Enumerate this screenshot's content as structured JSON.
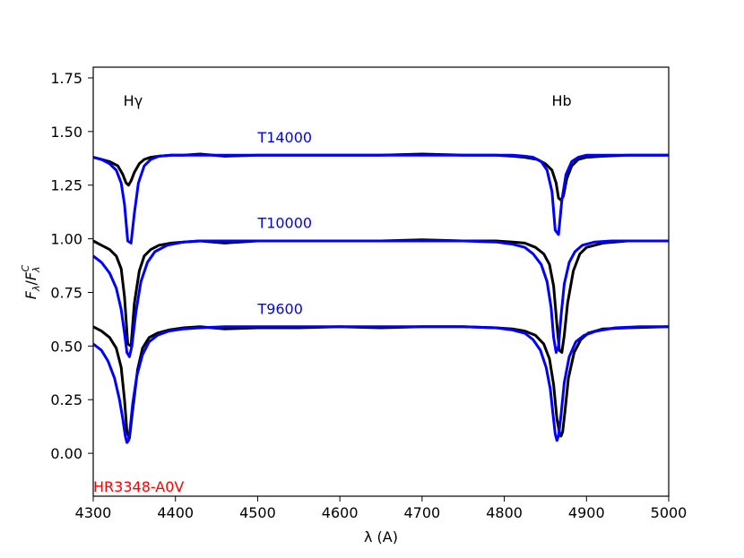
{
  "chart_data": {
    "type": "line",
    "title": "",
    "xlabel": "λ (A)",
    "ylabel": "Fλ/FλC",
    "xlim": [
      4300,
      5000
    ],
    "ylim": [
      -0.2,
      1.8
    ],
    "xticks": [
      4300,
      4400,
      4500,
      4600,
      4700,
      4800,
      4900,
      5000
    ],
    "xtick_labels": [
      "4300",
      "4400",
      "4500",
      "4600",
      "4700",
      "4800",
      "4900",
      "5000"
    ],
    "yticks": [
      0.0,
      0.25,
      0.5,
      0.75,
      1.0,
      1.25,
      1.5,
      1.75
    ],
    "ytick_labels": [
      "0.00",
      "0.25",
      "0.50",
      "0.75",
      "1.00",
      "1.25",
      "1.50",
      "1.75"
    ],
    "grid": false,
    "line_features": [
      {
        "label": "Hγ",
        "x": 4340,
        "y": 1.62
      },
      {
        "label": "Hb",
        "x": 4861,
        "y": 1.62
      }
    ],
    "annotations": [
      {
        "text": "T14000",
        "x": 4500,
        "y": 1.45,
        "color": "#0000ff"
      },
      {
        "text": "T10000",
        "x": 4500,
        "y": 1.05,
        "color": "#0000ff"
      },
      {
        "text": "T9600",
        "x": 4500,
        "y": 0.65,
        "color": "#0000ff"
      },
      {
        "text": "HR3348-A0V",
        "x": 4300,
        "y": -0.18,
        "color": "#ff0000"
      }
    ],
    "colors": {
      "observed": "#000000",
      "model": "#0000ff"
    },
    "series": [
      {
        "role": "observed",
        "offset": 0.4,
        "color": "#000000",
        "x": [
          4300,
          4310,
          4320,
          4330,
          4336,
          4340,
          4343,
          4346,
          4350,
          4356,
          4362,
          4370,
          4380,
          4395,
          4410,
          4430,
          4460,
          4500,
          4550,
          4600,
          4650,
          4700,
          4750,
          4790,
          4810,
          4825,
          4840,
          4850,
          4858,
          4863,
          4866,
          4869,
          4872,
          4876,
          4882,
          4890,
          4900,
          4920,
          4950,
          5000
        ],
        "y": [
          0.98,
          0.97,
          0.96,
          0.94,
          0.9,
          0.86,
          0.85,
          0.87,
          0.91,
          0.95,
          0.97,
          0.98,
          0.985,
          0.99,
          0.99,
          0.995,
          0.985,
          0.99,
          0.99,
          0.99,
          0.99,
          0.995,
          0.99,
          0.99,
          0.985,
          0.98,
          0.97,
          0.95,
          0.92,
          0.86,
          0.79,
          0.78,
          0.8,
          0.88,
          0.94,
          0.97,
          0.98,
          0.985,
          0.99,
          0.99
        ]
      },
      {
        "role": "model",
        "name": "T14000",
        "offset": 0.4,
        "color": "#0000ff",
        "x": [
          4300,
          4310,
          4320,
          4328,
          4334,
          4338,
          4342,
          4346,
          4350,
          4355,
          4362,
          4370,
          4380,
          4395,
          4410,
          4430,
          4460,
          4500,
          4550,
          4600,
          4650,
          4700,
          4750,
          4790,
          4810,
          4825,
          4835,
          4845,
          4852,
          4858,
          4862,
          4866,
          4870,
          4875,
          4882,
          4890,
          4900,
          4920,
          4950,
          5000
        ],
        "y": [
          0.98,
          0.97,
          0.95,
          0.92,
          0.86,
          0.76,
          0.59,
          0.58,
          0.72,
          0.86,
          0.94,
          0.97,
          0.985,
          0.99,
          0.99,
          0.99,
          0.99,
          0.99,
          0.99,
          0.99,
          0.99,
          0.99,
          0.99,
          0.99,
          0.99,
          0.985,
          0.98,
          0.96,
          0.92,
          0.82,
          0.64,
          0.62,
          0.78,
          0.9,
          0.96,
          0.98,
          0.99,
          0.99,
          0.99,
          0.99
        ]
      },
      {
        "role": "observed",
        "offset": 0.0,
        "color": "#000000",
        "x": [
          4300,
          4310,
          4320,
          4328,
          4334,
          4338,
          4342,
          4346,
          4350,
          4356,
          4362,
          4370,
          4380,
          4395,
          4410,
          4430,
          4460,
          4500,
          4550,
          4600,
          4650,
          4700,
          4750,
          4790,
          4810,
          4825,
          4838,
          4848,
          4855,
          4860,
          4864,
          4867,
          4870,
          4873,
          4877,
          4884,
          4892,
          4900,
          4920,
          4950,
          5000
        ],
        "y": [
          0.99,
          0.97,
          0.95,
          0.92,
          0.86,
          0.73,
          0.51,
          0.5,
          0.7,
          0.85,
          0.92,
          0.95,
          0.97,
          0.98,
          0.985,
          0.99,
          0.98,
          0.99,
          0.99,
          0.99,
          0.99,
          0.995,
          0.99,
          0.99,
          0.985,
          0.98,
          0.96,
          0.93,
          0.88,
          0.78,
          0.6,
          0.48,
          0.47,
          0.55,
          0.7,
          0.85,
          0.93,
          0.96,
          0.98,
          0.99,
          0.99
        ]
      },
      {
        "role": "model",
        "name": "T10000",
        "offset": 0.0,
        "color": "#0000ff",
        "x": [
          4300,
          4310,
          4320,
          4328,
          4334,
          4338,
          4341,
          4344,
          4347,
          4352,
          4358,
          4366,
          4375,
          4390,
          4410,
          4430,
          4460,
          4500,
          4550,
          4600,
          4650,
          4700,
          4750,
          4790,
          4810,
          4825,
          4835,
          4845,
          4852,
          4857,
          4860,
          4863,
          4866,
          4869,
          4873,
          4879,
          4886,
          4895,
          4910,
          4930,
          4960,
          5000
        ],
        "y": [
          0.92,
          0.89,
          0.84,
          0.77,
          0.67,
          0.56,
          0.47,
          0.45,
          0.5,
          0.66,
          0.8,
          0.89,
          0.94,
          0.97,
          0.985,
          0.99,
          0.99,
          0.99,
          0.99,
          0.99,
          0.99,
          0.99,
          0.99,
          0.985,
          0.975,
          0.96,
          0.93,
          0.88,
          0.8,
          0.68,
          0.54,
          0.47,
          0.5,
          0.64,
          0.79,
          0.89,
          0.94,
          0.97,
          0.985,
          0.99,
          0.99,
          0.99
        ]
      },
      {
        "role": "observed",
        "offset": -0.4,
        "color": "#000000",
        "x": [
          4300,
          4310,
          4320,
          4328,
          4334,
          4338,
          4341,
          4344,
          4348,
          4354,
          4360,
          4368,
          4378,
          4392,
          4410,
          4430,
          4460,
          4500,
          4550,
          4600,
          4650,
          4700,
          4750,
          4790,
          4810,
          4825,
          4838,
          4848,
          4855,
          4860,
          4864,
          4867,
          4869,
          4871,
          4874,
          4878,
          4885,
          4893,
          4902,
          4920,
          4950,
          5000
        ],
        "y": [
          0.99,
          0.97,
          0.94,
          0.89,
          0.8,
          0.65,
          0.5,
          0.47,
          0.6,
          0.79,
          0.89,
          0.94,
          0.96,
          0.975,
          0.985,
          0.99,
          0.98,
          0.985,
          0.985,
          0.99,
          0.985,
          0.99,
          0.99,
          0.985,
          0.98,
          0.97,
          0.95,
          0.91,
          0.84,
          0.72,
          0.56,
          0.5,
          0.48,
          0.5,
          0.6,
          0.75,
          0.87,
          0.93,
          0.96,
          0.98,
          0.985,
          0.99
        ]
      },
      {
        "role": "model",
        "name": "T9600",
        "offset": -0.4,
        "color": "#0000ff",
        "x": [
          4300,
          4310,
          4318,
          4326,
          4332,
          4336,
          4339,
          4341,
          4343,
          4345,
          4348,
          4353,
          4360,
          4368,
          4378,
          4392,
          4410,
          4430,
          4460,
          4500,
          4550,
          4600,
          4650,
          4700,
          4750,
          4790,
          4810,
          4825,
          4835,
          4844,
          4851,
          4856,
          4859,
          4862,
          4864,
          4866,
          4869,
          4873,
          4879,
          4887,
          4897,
          4912,
          4935,
          4965,
          5000
        ],
        "y": [
          0.91,
          0.88,
          0.83,
          0.75,
          0.65,
          0.56,
          0.48,
          0.45,
          0.46,
          0.52,
          0.63,
          0.76,
          0.86,
          0.92,
          0.95,
          0.97,
          0.98,
          0.985,
          0.99,
          0.99,
          0.99,
          0.99,
          0.99,
          0.99,
          0.99,
          0.985,
          0.975,
          0.96,
          0.93,
          0.88,
          0.8,
          0.7,
          0.59,
          0.49,
          0.46,
          0.48,
          0.58,
          0.73,
          0.85,
          0.92,
          0.95,
          0.97,
          0.985,
          0.99,
          0.99
        ]
      }
    ]
  }
}
